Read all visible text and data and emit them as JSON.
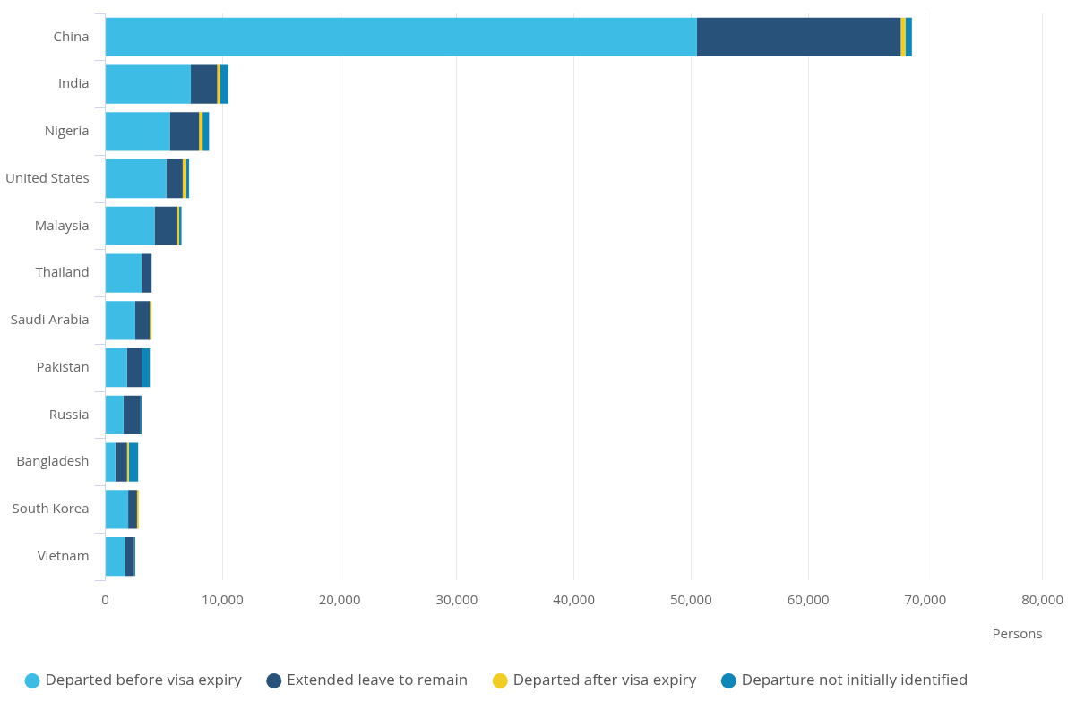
{
  "chart_data": {
    "type": "bar",
    "orientation": "horizontal",
    "stacked": true,
    "xlabel": "Persons",
    "categories": [
      "China",
      "India",
      "Nigeria",
      "United States",
      "Malaysia",
      "Thailand",
      "Saudi Arabia",
      "Pakistan",
      "Russia",
      "Bangladesh",
      "South Korea",
      "Vietnam"
    ],
    "series": [
      {
        "name": "Departed before visa expiry",
        "color": "#3dbde5",
        "values": [
          50500,
          7300,
          5500,
          5200,
          4200,
          3100,
          2550,
          1850,
          1550,
          850,
          1950,
          1700
        ]
      },
      {
        "name": "Extended leave to remain",
        "color": "#29527a",
        "values": [
          17400,
          2250,
          2500,
          1400,
          1950,
          850,
          1250,
          1250,
          1450,
          1000,
          750,
          750
        ]
      },
      {
        "name": "Departed after visa expiry",
        "color": "#f0cd22",
        "values": [
          400,
          250,
          300,
          300,
          150,
          0,
          150,
          0,
          0,
          150,
          150,
          0
        ]
      },
      {
        "name": "Departure not initially identified",
        "color": "#0f86b9",
        "values": [
          550,
          700,
          550,
          250,
          200,
          0,
          0,
          700,
          100,
          800,
          0,
          100
        ]
      }
    ],
    "xlim": [
      0,
      80000
    ],
    "xticks": [
      0,
      {
        "value": 10000,
        "label": "10,000"
      },
      {
        "value": 20000,
        "label": "20,000"
      },
      {
        "value": 30000,
        "label": "30,000"
      },
      {
        "value": 40000,
        "label": "40,000"
      },
      {
        "value": 50000,
        "label": "50,000"
      },
      {
        "value": 60000,
        "label": "60,000"
      },
      {
        "value": 70000,
        "label": "70,000"
      },
      {
        "value": 80000,
        "label": "80,000"
      }
    ],
    "grid": "x",
    "legend": "bottom"
  }
}
